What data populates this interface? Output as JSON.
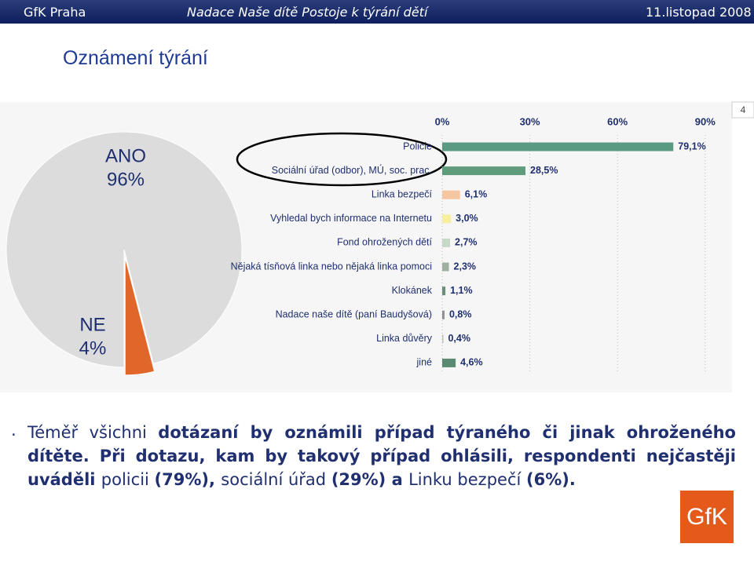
{
  "header": {
    "left": "GfK Praha",
    "center": "Nadace Naše dítě Postoje k týrání dětí",
    "right": "11.listopad 2008"
  },
  "title": "Oznámení týrání",
  "page_number": "4",
  "chart_data": [
    {
      "type": "pie",
      "categories": [
        "ANO",
        "NE"
      ],
      "values": [
        96,
        4
      ],
      "value_labels": [
        "96%",
        "4%"
      ],
      "colors": [
        "#dcdcdc",
        "#e0662a"
      ]
    },
    {
      "type": "hbar",
      "categories": [
        "Policie",
        "Sociální úřad (odbor), MÚ, soc. prac.",
        "Linka bezpečí",
        "Vyhledal bych informace na Internetu",
        "Fond ohrožených dětí",
        "Nějaká tísňová linka nebo nějaká linka pomoci",
        "Klokánek",
        "Nadace naše dítě (paní Baudyšová)",
        "Linka důvěry",
        "jiné"
      ],
      "values": [
        79.1,
        28.5,
        6.1,
        3.0,
        2.7,
        2.3,
        1.1,
        0.8,
        0.4,
        4.6
      ],
      "value_labels": [
        "79,1%",
        "28,5%",
        "6,1%",
        "3,0%",
        "2,7%",
        "2,3%",
        "1,1%",
        "0,8%",
        "0,4%",
        "4,6%"
      ],
      "colors": [
        "#5b9a82",
        "#5e9c7c",
        "#f5c6a0",
        "#f7ef9e",
        "#c8d8c8",
        "#a0b0a0",
        "#6b8e7a",
        "#909090",
        "#c0c0c0",
        "#5b8a72"
      ],
      "xlim": [
        0,
        100
      ],
      "xticks": [
        {
          "value": 0,
          "label": "0%"
        },
        {
          "value": 30,
          "label": "30%"
        },
        {
          "value": 60,
          "label": "60%"
        },
        {
          "value": 90,
          "label": "90%"
        }
      ],
      "grid": true
    }
  ],
  "note": {
    "bullet": ".",
    "segments": [
      {
        "text": "Téměř všichni ",
        "bold": false
      },
      {
        "text": "dotázaní by oznámili případ týraného či jinak ohroženého dítěte. Při dotazu, kam by takový případ ohlásili, respondenti nejčastěji uváděli ",
        "bold": true
      },
      {
        "text": "policii ",
        "bold": false
      },
      {
        "text": "(79%), ",
        "bold": true
      },
      {
        "text": "sociální úřad ",
        "bold": false
      },
      {
        "text": "(29%) a ",
        "bold": true
      },
      {
        "text": "Linku bezpečí ",
        "bold": false
      },
      {
        "text": "(6%).",
        "bold": true
      }
    ]
  },
  "logo": "GfK"
}
